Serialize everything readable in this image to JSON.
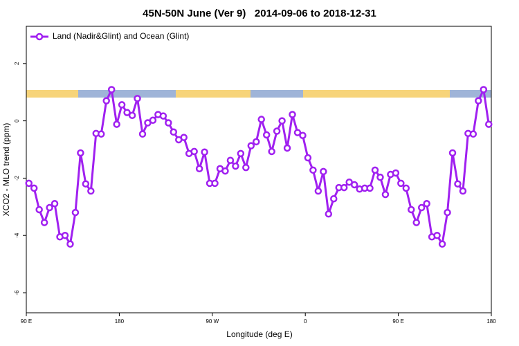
{
  "chart_data": {
    "type": "line",
    "title": "45N-50N June (Ver 9)   2014-09-06 to 2018-12-31",
    "xlabel": "Longitude (deg E)",
    "ylabel": "XCO2 - MLO trend (ppm)",
    "x": [
      92.5,
      97.5,
      102.5,
      107.5,
      112.5,
      117.5,
      122.5,
      127.5,
      132.5,
      137.5,
      142.5,
      147.5,
      152.5,
      157.5,
      162.5,
      167.5,
      172.5,
      177.5,
      182.5,
      187.5,
      192.5,
      197.5,
      202.5,
      207.5,
      212.5,
      217.5,
      222.5,
      227.5,
      232.5,
      237.5,
      242.5,
      247.5,
      252.5,
      257.5,
      262.5,
      267.5,
      272.5,
      277.5,
      282.5,
      287.5,
      292.5,
      297.5,
      302.5,
      307.5,
      312.5,
      317.5,
      322.5,
      327.5,
      332.5,
      337.5,
      342.5,
      347.5,
      352.5,
      357.5,
      362.5,
      367.5,
      372.5,
      377.5,
      382.5,
      387.5,
      392.5,
      397.5,
      402.5,
      407.5,
      412.5,
      417.5,
      422.5,
      427.5,
      432.5,
      437.5,
      442.5,
      447.5,
      452.5,
      457.5,
      462.5,
      467.5,
      472.5,
      477.5,
      482.5,
      487.5,
      492.5,
      497.5,
      502.5,
      507.5,
      512.5,
      517.5,
      522.5,
      527.5,
      532.5,
      537.5
    ],
    "series": [
      {
        "name": "Land (Nadir&Glint) and Ocean (Glint)",
        "color": "#a020f0",
        "values": [
          -2.18,
          -2.35,
          -3.1,
          -3.55,
          -3.03,
          -2.89,
          -4.05,
          -4.0,
          -4.3,
          -3.2,
          -1.12,
          -2.2,
          -2.45,
          -0.44,
          -0.46,
          0.7,
          1.09,
          -0.12,
          0.56,
          0.29,
          0.19,
          0.78,
          -0.46,
          -0.07,
          0.02,
          0.22,
          0.17,
          -0.07,
          -0.39,
          -0.66,
          -0.58,
          -1.14,
          -1.07,
          -1.67,
          -1.09,
          -2.18,
          -2.18,
          -1.67,
          -1.75,
          -1.38,
          -1.58,
          -1.14,
          -1.63,
          -0.87,
          -0.73,
          0.05,
          -0.49,
          -1.07,
          -0.36,
          0.0,
          -0.95,
          0.22,
          -0.41,
          -0.51,
          -1.29,
          -1.72,
          -2.45,
          -1.77,
          -3.25,
          -2.72,
          -2.33,
          -2.33,
          -2.14,
          -2.23,
          -2.38,
          -2.35,
          -2.35,
          -1.72,
          -1.97,
          -2.57,
          -1.87,
          -1.82,
          -2.18,
          -2.35,
          -3.1,
          -3.55,
          -3.03,
          -2.89,
          -4.05,
          -4.0,
          -4.3,
          -3.2,
          -1.12,
          -2.2,
          -2.45,
          -0.44,
          -0.46,
          0.7,
          1.09,
          -0.12
        ]
      }
    ],
    "xlim": [
      90,
      540
    ],
    "xticks": [
      {
        "value": 90,
        "label": "90 E"
      },
      180,
      {
        "value": 270,
        "label": "90 W"
      },
      {
        "value": 360,
        "label": "0"
      },
      {
        "value": 450,
        "label": "90 E"
      },
      {
        "value": 540,
        "label": "180"
      }
    ],
    "ylim": [
      -6.7,
      3.3
    ],
    "yticks": [
      -6,
      -4,
      -2,
      0,
      2
    ],
    "legend": "top-left"
  }
}
